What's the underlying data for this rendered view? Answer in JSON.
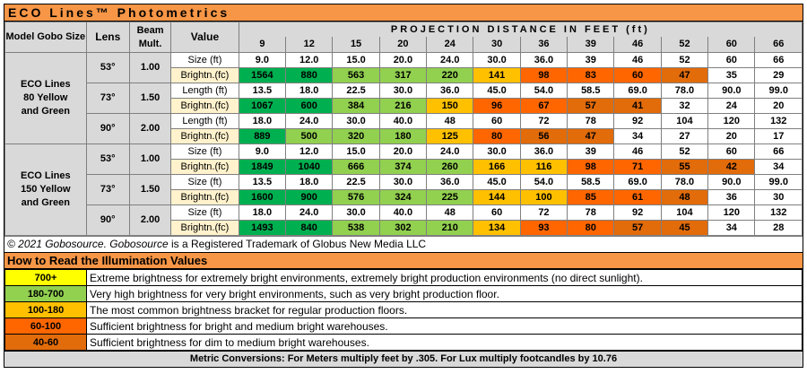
{
  "title": "ECO Lines™  Photometrics",
  "headers": {
    "model": "Model Gobo Size",
    "lens": "Lens",
    "beam": "Beam Mult.",
    "value": "Value",
    "projection": "PROJECTION DISTANCE IN FEET (ft)"
  },
  "distances": [
    "9",
    "12",
    "15",
    "20",
    "24",
    "30",
    "36",
    "39",
    "46",
    "52",
    "60",
    "66"
  ],
  "colors": {
    "yellow": "#ffff00",
    "lightgreen": "#92d050",
    "green": "#00b050",
    "gold": "#ffc000",
    "orange": "#ff6600",
    "brown": "#e26b0a",
    "white": "#ffffff",
    "label": "#fff2cc",
    "header": "#d9d9d9",
    "accent": "#f79646"
  },
  "groups": [
    {
      "model": "ECO Lines 80 Yellow and Green",
      "lenses": [
        {
          "angle": "53°",
          "beam": "1.00",
          "size_label": "Size (ft)",
          "sizes": [
            "9.0",
            "12.0",
            "15.0",
            "20.0",
            "24.0",
            "30.0",
            "36.0",
            "39",
            "46",
            "52",
            "60",
            "66"
          ],
          "brightness_label": "Brightn.(fc)",
          "brightness": [
            "1564",
            "880",
            "563",
            "317",
            "220",
            "141",
            "98",
            "83",
            "60",
            "47",
            "35",
            "29"
          ],
          "colors": [
            "green",
            "green",
            "lightgreen",
            "lightgreen",
            "lightgreen",
            "gold",
            "orange",
            "orange",
            "orange",
            "brown",
            "white",
            "white"
          ]
        },
        {
          "angle": "73°",
          "beam": "1.50",
          "size_label": "Length (ft)",
          "sizes": [
            "13.5",
            "18.0",
            "22.5",
            "30.0",
            "36.0",
            "45.0",
            "54.0",
            "58.5",
            "69.0",
            "78.0",
            "90.0",
            "99.0"
          ],
          "brightness_label": "Brightn.(fc)",
          "brightness": [
            "1067",
            "600",
            "384",
            "216",
            "150",
            "96",
            "67",
            "57",
            "41",
            "32",
            "24",
            "20"
          ],
          "colors": [
            "green",
            "green",
            "lightgreen",
            "lightgreen",
            "gold",
            "orange",
            "orange",
            "brown",
            "brown",
            "white",
            "white",
            "white"
          ]
        },
        {
          "angle": "90°",
          "beam": "2.00",
          "size_label": "Length (ft)",
          "sizes": [
            "18.0",
            "24.0",
            "30.0",
            "40.0",
            "48",
            "60",
            "72",
            "78",
            "92",
            "104",
            "120",
            "132"
          ],
          "brightness_label": "Brightn.(fc)",
          "brightness": [
            "889",
            "500",
            "320",
            "180",
            "125",
            "80",
            "56",
            "47",
            "34",
            "27",
            "20",
            "17"
          ],
          "colors": [
            "green",
            "lightgreen",
            "lightgreen",
            "lightgreen",
            "gold",
            "orange",
            "brown",
            "brown",
            "white",
            "white",
            "white",
            "white"
          ]
        }
      ]
    },
    {
      "model": "ECO Lines 150 Yellow and Green",
      "lenses": [
        {
          "angle": "53°",
          "beam": "1.00",
          "size_label": "Size (ft)",
          "sizes": [
            "9.0",
            "12.0",
            "15.0",
            "20.0",
            "24.0",
            "30.0",
            "36.0",
            "39",
            "46",
            "52",
            "60",
            "66"
          ],
          "brightness_label": "Brightn.(fc)",
          "brightness": [
            "1849",
            "1040",
            "666",
            "374",
            "260",
            "166",
            "116",
            "98",
            "71",
            "55",
            "42",
            "34"
          ],
          "colors": [
            "green",
            "green",
            "lightgreen",
            "lightgreen",
            "lightgreen",
            "gold",
            "gold",
            "orange",
            "orange",
            "brown",
            "brown",
            "white"
          ]
        },
        {
          "angle": "73°",
          "beam": "1.50",
          "size_label": "Size (ft)",
          "sizes": [
            "13.5",
            "18.0",
            "22.5",
            "30.0",
            "36.0",
            "45.0",
            "54.0",
            "58.5",
            "69.0",
            "78.0",
            "90.0",
            "99.0"
          ],
          "brightness_label": "Brightn.(fc)",
          "brightness": [
            "1600",
            "900",
            "576",
            "324",
            "225",
            "144",
            "100",
            "85",
            "61",
            "48",
            "36",
            "30"
          ],
          "colors": [
            "green",
            "green",
            "lightgreen",
            "lightgreen",
            "lightgreen",
            "gold",
            "gold",
            "orange",
            "orange",
            "brown",
            "white",
            "white"
          ]
        },
        {
          "angle": "90°",
          "beam": "2.00",
          "size_label": "Size (ft)",
          "sizes": [
            "18.0",
            "24.0",
            "30.0",
            "40.0",
            "48",
            "60",
            "72",
            "78",
            "92",
            "104",
            "120",
            "132"
          ],
          "brightness_label": "Brightn.(fc)",
          "brightness": [
            "1493",
            "840",
            "538",
            "302",
            "210",
            "134",
            "93",
            "80",
            "57",
            "45",
            "34",
            "28"
          ],
          "colors": [
            "green",
            "green",
            "lightgreen",
            "lightgreen",
            "lightgreen",
            "gold",
            "orange",
            "orange",
            "brown",
            "brown",
            "white",
            "white"
          ]
        }
      ]
    }
  ],
  "copyright": {
    "italic": "© 2021 Gobosource. Gobosource",
    "rest": " is a Registered Trademark of Globus New Media LLC"
  },
  "legend_title": "How to Read the Illumination Values",
  "legend": [
    {
      "range": "700+",
      "color": "yellow",
      "text": "Extreme brightness for extremely bright environments, extremely bright production environments (no direct sunlight)."
    },
    {
      "range": "180-700",
      "color": "lightgreen",
      "text": "Very high brightness for very bright environments, such as very bright production floor."
    },
    {
      "range": "100-180",
      "color": "gold",
      "text": "The most common brightness bracket for regular production floors."
    },
    {
      "range": "60-100",
      "color": "orange",
      "text": "Sufficient brightness for bright and medium bright warehouses."
    },
    {
      "range": "40-60",
      "color": "brown",
      "text": "Sufficient brightness for dim to medium bright warehouses."
    }
  ],
  "metric_note": "Metric Conversions: For Meters multiply feet by .305. For Lux multiply footcandles by 10.76"
}
